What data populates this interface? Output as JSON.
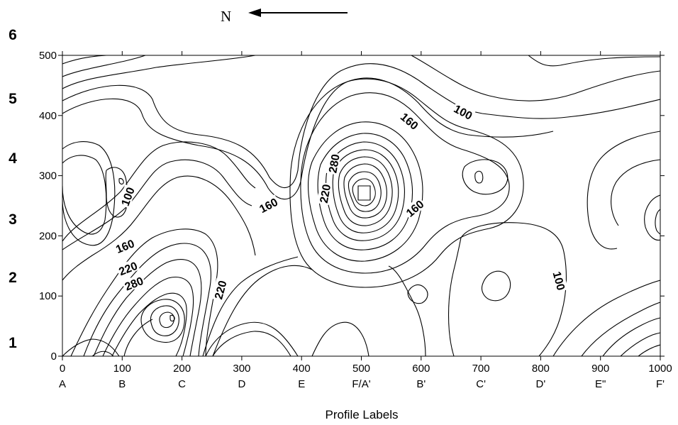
{
  "north": {
    "letter": "N",
    "arrow": "left-arrow-icon"
  },
  "row_labels": [
    "1",
    "2",
    "3",
    "4",
    "5",
    "6"
  ],
  "chart_data": {
    "type": "contour",
    "title": "",
    "xlabel": "Profile Labels",
    "ylabel": "",
    "xlim": [
      0,
      1000
    ],
    "ylim": [
      0,
      500
    ],
    "x_ticks": [
      0,
      100,
      200,
      300,
      400,
      500,
      600,
      700,
      800,
      900,
      1000
    ],
    "y_ticks": [
      0,
      100,
      200,
      300,
      400,
      500
    ],
    "x_tick_labels": [
      "0",
      "100",
      "200",
      "300",
      "400",
      "500",
      "600",
      "700",
      "800",
      "900",
      "1000"
    ],
    "y_tick_labels": [
      "0",
      "100",
      "200",
      "300",
      "400",
      "500"
    ],
    "profile_labels": [
      "A",
      "B",
      "C",
      "D",
      "E",
      "F/A'",
      "B'",
      "C'",
      "D'",
      "E\"",
      "F'"
    ],
    "contour_interval": 20,
    "contour_labels": [
      {
        "text": "100",
        "x": 110,
        "y": 265
      },
      {
        "text": "160",
        "x": 345,
        "y": 250
      },
      {
        "text": "160",
        "x": 105,
        "y": 182
      },
      {
        "text": "220",
        "x": 110,
        "y": 145
      },
      {
        "text": "280",
        "x": 120,
        "y": 120
      },
      {
        "text": "220",
        "x": 265,
        "y": 110
      },
      {
        "text": "280",
        "x": 455,
        "y": 320
      },
      {
        "text": "220",
        "x": 440,
        "y": 270
      },
      {
        "text": "160",
        "x": 580,
        "y": 390
      },
      {
        "text": "160",
        "x": 590,
        "y": 245
      },
      {
        "text": "100",
        "x": 670,
        "y": 405
      },
      {
        "text": "100",
        "x": 830,
        "y": 125
      }
    ],
    "features": [
      {
        "kind": "high",
        "x": 500,
        "y": 300
      },
      {
        "kind": "high",
        "x": 200,
        "y": 100
      },
      {
        "kind": "low",
        "x": 100,
        "y": 290
      },
      {
        "kind": "low",
        "x": 690,
        "y": 300
      },
      {
        "kind": "low",
        "x": 100,
        "y": 400
      }
    ],
    "grid": false,
    "legend": ""
  }
}
